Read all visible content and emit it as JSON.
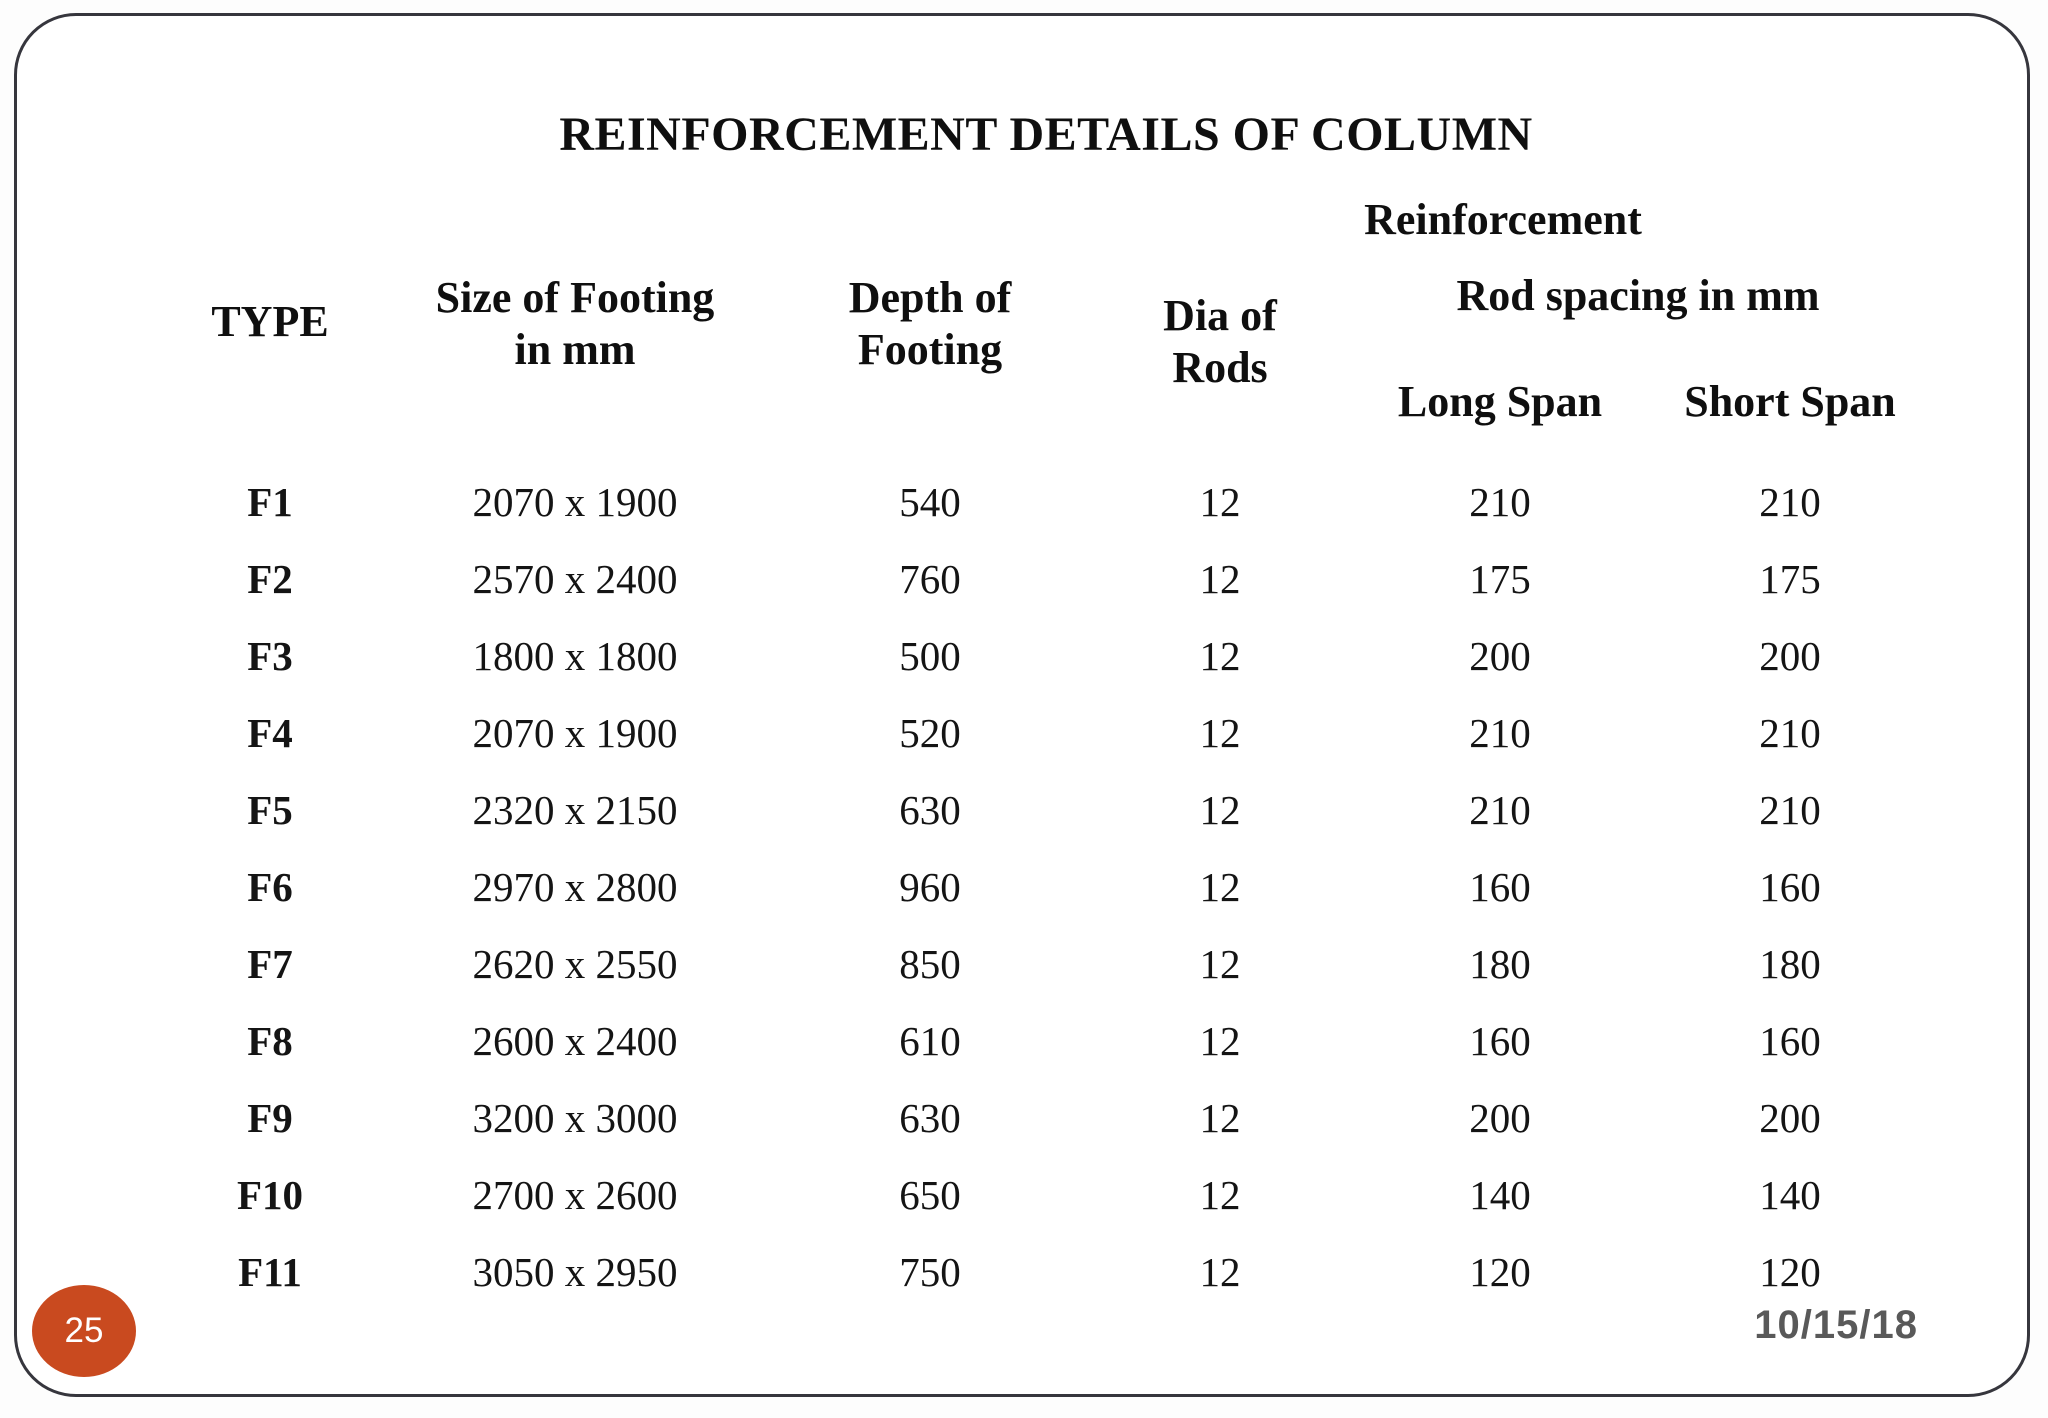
{
  "title": "REINFORCEMENT DETAILS OF COLUMN",
  "table": {
    "headers": {
      "type": "TYPE",
      "size_line1": "Size of Footing",
      "size_line2": "in mm",
      "depth_line1": "Depth of",
      "depth_line2": "Footing",
      "dia_line1": "Dia of",
      "dia_line2": "Rods",
      "reinforcement": "Reinforcement",
      "rod_spacing": "Rod spacing in mm",
      "long_span": "Long Span",
      "short_span": "Short Span"
    },
    "rows": [
      {
        "type": "F1",
        "size": "2070 x 1900",
        "depth": "540",
        "dia": "12",
        "long_span": "210",
        "short_span": "210"
      },
      {
        "type": "F2",
        "size": "2570 x 2400",
        "depth": "760",
        "dia": "12",
        "long_span": "175",
        "short_span": "175"
      },
      {
        "type": "F3",
        "size": "1800 x 1800",
        "depth": "500",
        "dia": "12",
        "long_span": "200",
        "short_span": "200"
      },
      {
        "type": "F4",
        "size": "2070 x 1900",
        "depth": "520",
        "dia": "12",
        "long_span": "210",
        "short_span": "210"
      },
      {
        "type": "F5",
        "size": "2320 x 2150",
        "depth": "630",
        "dia": "12",
        "long_span": "210",
        "short_span": "210"
      },
      {
        "type": "F6",
        "size": "2970 x 2800",
        "depth": "960",
        "dia": "12",
        "long_span": "160",
        "short_span": "160"
      },
      {
        "type": "F7",
        "size": "2620 x 2550",
        "depth": "850",
        "dia": "12",
        "long_span": "180",
        "short_span": "180"
      },
      {
        "type": "F8",
        "size": "2600 x 2400",
        "depth": "610",
        "dia": "12",
        "long_span": "160",
        "short_span": "160"
      },
      {
        "type": "F9",
        "size": "3200 x 3000",
        "depth": "630",
        "dia": "12",
        "long_span": "200",
        "short_span": "200"
      },
      {
        "type": "F10",
        "size": "2700 x 2600",
        "depth": "650",
        "dia": "12",
        "long_span": "140",
        "short_span": "140"
      },
      {
        "type": "F11",
        "size": "3050 x 2950",
        "depth": "750",
        "dia": "12",
        "long_span": "120",
        "short_span": "120"
      }
    ]
  },
  "footer": {
    "page_number": "25",
    "date": "10/15/18"
  },
  "colors": {
    "badge": "#c94a1f",
    "date": "#595959",
    "text": "#0f0f0f",
    "border": "#36363d"
  }
}
